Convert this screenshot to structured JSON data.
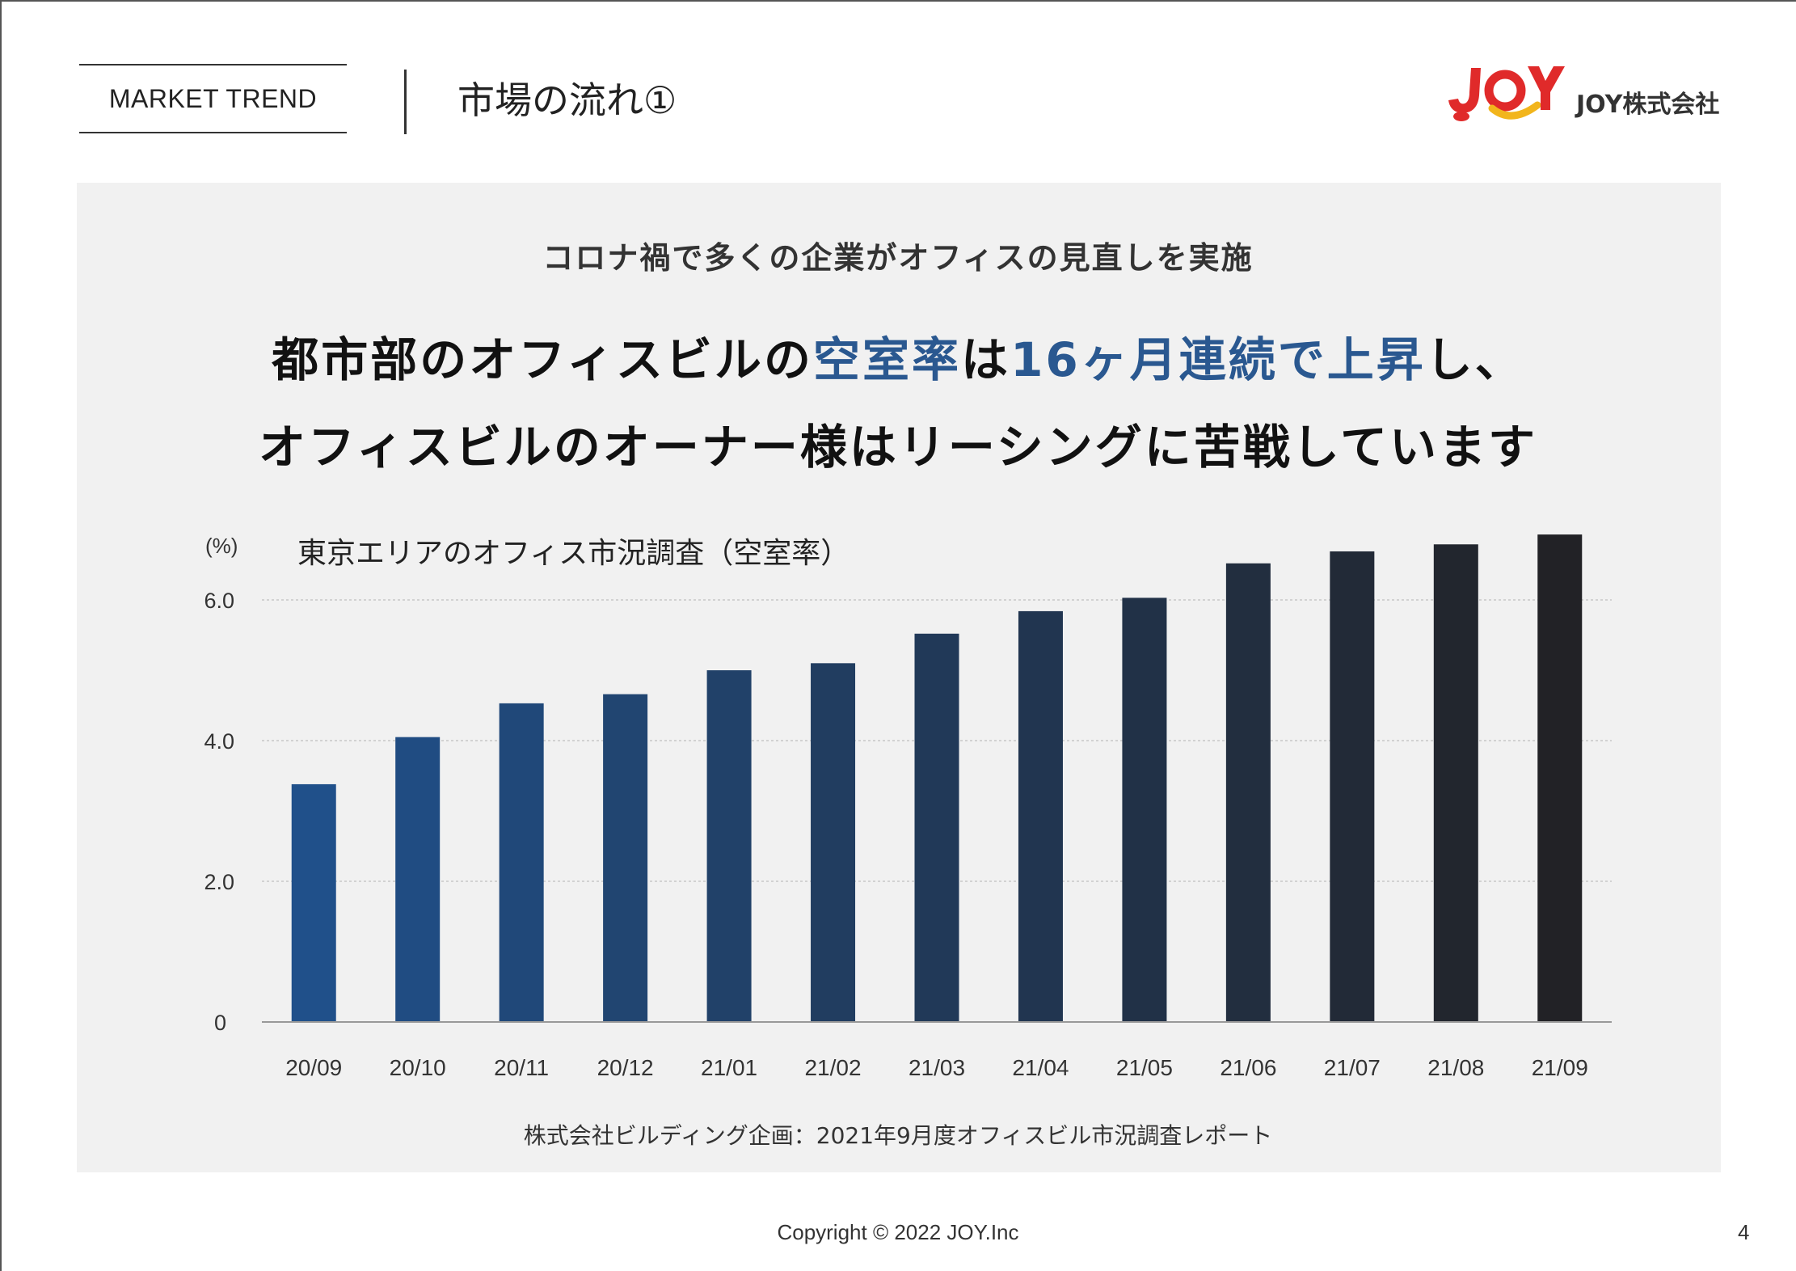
{
  "header": {
    "section_label": "MARKET TREND",
    "title": "市場の流れ①",
    "company_name": "JOY株式会社"
  },
  "panel": {
    "subtitle": "コロナ禍で多くの企業がオフィスの見直しを実施",
    "headline_line1": {
      "part1": "都市部のオフィスビルの",
      "highlight1": "空室率",
      "part2": "は",
      "highlight2": "16ヶ月連続で上昇",
      "part3": "し、"
    },
    "headline_line2": "オフィスビルのオーナー様はリーシングに苦戦しています",
    "source": "株式会社ビルディング企画：2021年9月度オフィスビル市況調査レポート"
  },
  "colors": {
    "highlight": "#2a5890",
    "bar_start": "#20508a",
    "bar_end": "#222226",
    "panel_bg": "#f1f1f1",
    "logo_red": "#e02a2a",
    "logo_yellow": "#f2b51c"
  },
  "chart_data": {
    "type": "bar",
    "title": "東京エリアのオフィス市況調査（空室率）",
    "ylabel": "(%)",
    "xlabel": "",
    "categories": [
      "20/09",
      "20/10",
      "20/11",
      "20/12",
      "21/01",
      "21/02",
      "21/03",
      "21/04",
      "21/05",
      "21/06",
      "21/07",
      "21/08",
      "21/09"
    ],
    "values": [
      3.38,
      4.05,
      4.53,
      4.66,
      5.0,
      5.1,
      5.52,
      5.84,
      6.03,
      6.52,
      6.69,
      6.79,
      6.93
    ],
    "yticks": [
      0,
      2.0,
      4.0,
      6.0
    ],
    "ytick_labels": [
      "0",
      "2.0",
      "4.0",
      "6.0"
    ],
    "ylim": [
      0,
      7.2
    ],
    "grid": true,
    "legend": "none"
  },
  "footer": {
    "copyright": "Copyright © 2022 JOY.Inc",
    "page_number": "4"
  }
}
